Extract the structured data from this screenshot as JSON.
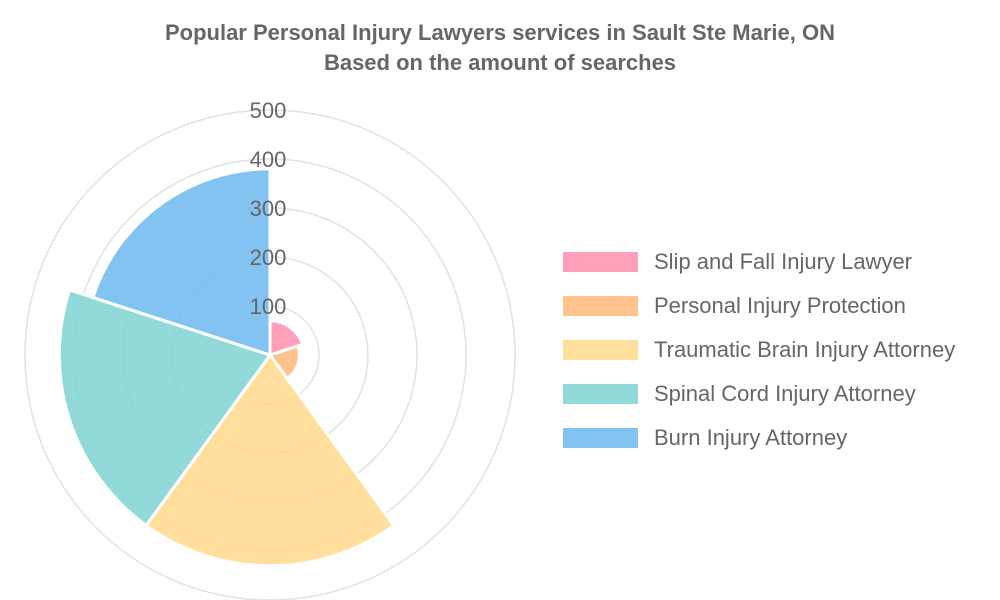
{
  "chart_data": {
    "type": "polarArea",
    "title": "Popular Personal Injury Lawyers services in Sault Ste Marie, ON",
    "subtitle": "Based on the amount of searches",
    "r_range": [
      0,
      500
    ],
    "r_ticks": [
      "100",
      "200",
      "300",
      "400",
      "500"
    ],
    "grid": true,
    "legend_position": "right",
    "categories": [
      "Slip and Fall Injury Lawyer",
      "Personal Injury Protection",
      "Traumatic Brain Injury Attorney",
      "Spinal Cord Injury Attorney",
      "Burn Injury Attorney"
    ],
    "values": [
      70,
      60,
      430,
      430,
      380
    ],
    "colors": [
      "#ff8fab",
      "#ffb97a",
      "#ffd98a",
      "#7fd3d3",
      "#6cb8ef"
    ]
  }
}
